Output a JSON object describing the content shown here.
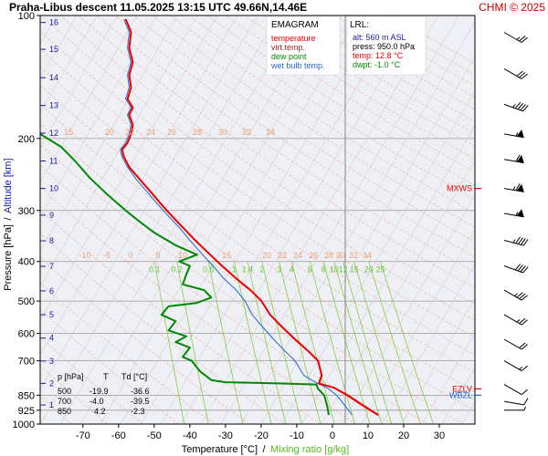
{
  "title": "Praha-Libus   descent   11.05.2025 13:15 UTC  49.66N,14.46E",
  "copyright": "CHMI © 2025",
  "legend": {
    "heading": "EMAGRAM",
    "items": [
      {
        "label": "temperature",
        "color": "#ee0000"
      },
      {
        "label": "virt.temp.",
        "color": "#aa2222"
      },
      {
        "label": "dew point",
        "color": "#008800"
      },
      {
        "label": "wet bulb temp.",
        "color": "#2266cc"
      }
    ]
  },
  "lrl": {
    "heading": "LRL:",
    "lines": [
      {
        "text": "alt: 560 m ASL",
        "color": "#1a1aa0"
      },
      {
        "text": "press: 950.0 hPa",
        "color": "#000000"
      },
      {
        "text": "temp: 12.8 °C",
        "color": "#ee0000"
      },
      {
        "text": "dwpt: -1.0 °C",
        "color": "#008800"
      }
    ]
  },
  "table": {
    "header": [
      "p [hPa]",
      "T",
      "Td [°C]"
    ],
    "rows": [
      [
        "500",
        "-19.9",
        "-36.6"
      ],
      [
        "700",
        "-4.0",
        "-39.5"
      ],
      [
        "850",
        "4.2",
        "-2.3"
      ]
    ]
  },
  "markers": [
    {
      "label": "MXWS",
      "p": 265,
      "color": "#ee0000"
    },
    {
      "label": "EZLV",
      "p": 820,
      "color": "#ee0000"
    },
    {
      "label": "WBZL",
      "p": 850,
      "color": "#2266cc"
    }
  ],
  "chart_data": {
    "type": "line",
    "xlabel": "Temperature [°C]",
    "xlabel_sep": "/",
    "xlabel2": "Mixing ratio [g/kg]",
    "ylabel": "Pressure [hPa]",
    "ylabel_sep": "/",
    "ylabel2": "Altitude [km]",
    "xlim": [
      -82,
      40
    ],
    "ylim": [
      1000,
      100
    ],
    "y_scale": "log",
    "x_ticks": [
      -70,
      -60,
      -50,
      -40,
      -30,
      -20,
      -10,
      0,
      10,
      20,
      30
    ],
    "y_ticks": [
      100,
      200,
      300,
      400,
      500,
      600,
      700,
      850,
      925,
      1000
    ],
    "altitude_ticks": [
      {
        "km": "1",
        "p": 898
      },
      {
        "km": "2",
        "p": 795
      },
      {
        "km": "3",
        "p": 701
      },
      {
        "km": "4",
        "p": 616
      },
      {
        "km": "5",
        "p": 540
      },
      {
        "km": "6",
        "p": 472
      },
      {
        "km": "7",
        "p": 411
      },
      {
        "km": "8",
        "p": 356
      },
      {
        "km": "9",
        "p": 308
      },
      {
        "km": "10",
        "p": 265
      },
      {
        "km": "11",
        "p": 227
      },
      {
        "km": "12",
        "p": 194
      },
      {
        "km": "13",
        "p": 166
      },
      {
        "km": "14",
        "p": 142
      },
      {
        "km": "15",
        "p": 121
      },
      {
        "km": "16",
        "p": 104
      }
    ],
    "dry_adiabat_labels": [
      "15",
      "20",
      "22",
      "24",
      "26",
      "28",
      "30",
      "32",
      "34"
    ],
    "dry_adiabat_labels_upper": [
      "15",
      "20",
      "22",
      "24",
      "26",
      "28",
      "30",
      "32",
      "34"
    ],
    "dry_adiabat_labels_400": [
      "-10",
      "-5",
      "0",
      "5",
      "10",
      "15",
      "20",
      "22",
      "24",
      "26",
      "28",
      "30",
      "32",
      "34"
    ],
    "mixing_ratio_labels": [
      "0.1",
      "0.2",
      "0.5",
      "1",
      "1.4",
      "2",
      "3",
      "4",
      "6",
      "8",
      "10",
      "12",
      "15",
      "20",
      "25"
    ],
    "series": [
      {
        "name": "temperature",
        "color": "#ee0000",
        "points": [
          [
            12.8,
            950
          ],
          [
            8.5,
            900
          ],
          [
            4.2,
            850
          ],
          [
            0.5,
            815
          ],
          [
            -3.8,
            795
          ],
          [
            -3.0,
            760
          ],
          [
            -4.0,
            700
          ],
          [
            -7.0,
            660
          ],
          [
            -10.5,
            620
          ],
          [
            -14.0,
            580
          ],
          [
            -17.5,
            540
          ],
          [
            -19.9,
            500
          ],
          [
            -23.0,
            470
          ],
          [
            -27.0,
            440
          ],
          [
            -31.0,
            410
          ],
          [
            -35.0,
            380
          ],
          [
            -38.5,
            355
          ],
          [
            -42.0,
            330
          ],
          [
            -45.0,
            310
          ],
          [
            -48.0,
            290
          ],
          [
            -51.0,
            270
          ],
          [
            -54.0,
            252
          ],
          [
            -57.0,
            235
          ],
          [
            -58.5,
            222
          ],
          [
            -59.0,
            213
          ],
          [
            -57.5,
            205
          ],
          [
            -56.5,
            195
          ],
          [
            -56.0,
            185
          ],
          [
            -57.0,
            175
          ],
          [
            -56.0,
            168
          ],
          [
            -57.5,
            160
          ],
          [
            -56.5,
            150
          ],
          [
            -57.0,
            140
          ],
          [
            -56.0,
            130
          ],
          [
            -57.0,
            120
          ],
          [
            -56.5,
            110
          ],
          [
            -58.0,
            102
          ]
        ]
      },
      {
        "name": "virt.temp.",
        "color": "#aa2222",
        "points": [
          [
            13.0,
            950
          ],
          [
            8.8,
            900
          ],
          [
            4.5,
            850
          ],
          [
            0.6,
            815
          ],
          [
            -3.7,
            795
          ],
          [
            -2.9,
            760
          ],
          [
            -4.0,
            700
          ],
          [
            -7.0,
            660
          ],
          [
            -10.5,
            620
          ],
          [
            -14.0,
            580
          ],
          [
            -17.5,
            540
          ],
          [
            -19.9,
            500
          ],
          [
            -23.0,
            470
          ],
          [
            -27.0,
            440
          ],
          [
            -31.0,
            410
          ],
          [
            -35.0,
            380
          ],
          [
            -38.5,
            355
          ],
          [
            -42.0,
            330
          ],
          [
            -45.0,
            310
          ],
          [
            -48.0,
            290
          ],
          [
            -51.0,
            270
          ],
          [
            -54.0,
            252
          ],
          [
            -57.0,
            235
          ],
          [
            -58.5,
            222
          ],
          [
            -59.0,
            213
          ],
          [
            -57.5,
            205
          ],
          [
            -56.5,
            195
          ],
          [
            -56.0,
            185
          ],
          [
            -57.0,
            175
          ],
          [
            -56.0,
            168
          ],
          [
            -57.5,
            160
          ],
          [
            -56.5,
            150
          ],
          [
            -57.0,
            140
          ],
          [
            -56.0,
            130
          ],
          [
            -57.0,
            120
          ],
          [
            -56.5,
            110
          ],
          [
            -58.0,
            102
          ]
        ]
      },
      {
        "name": "dew point",
        "color": "#008800",
        "points": [
          [
            -1.0,
            950
          ],
          [
            -1.5,
            900
          ],
          [
            -2.3,
            850
          ],
          [
            -4.0,
            820
          ],
          [
            -4.5,
            800
          ],
          [
            -15.0,
            795
          ],
          [
            -30.0,
            790
          ],
          [
            -34.0,
            780
          ],
          [
            -37.0,
            745
          ],
          [
            -39.5,
            700
          ],
          [
            -42.0,
            685
          ],
          [
            -40.0,
            650
          ],
          [
            -44.0,
            630
          ],
          [
            -41.0,
            610
          ],
          [
            -46.0,
            590
          ],
          [
            -44.0,
            560
          ],
          [
            -48.0,
            540
          ],
          [
            -46.0,
            515
          ],
          [
            -38.0,
            505
          ],
          [
            -34.0,
            490
          ],
          [
            -36.0,
            470
          ],
          [
            -42.0,
            455
          ],
          [
            -41.0,
            430
          ],
          [
            -40.0,
            410
          ],
          [
            -43.0,
            400
          ],
          [
            -38.0,
            385
          ],
          [
            -44.0,
            365
          ],
          [
            -50.0,
            340
          ],
          [
            -54.0,
            320
          ],
          [
            -58.0,
            300
          ],
          [
            -63.0,
            275
          ],
          [
            -68.0,
            250
          ],
          [
            -72.0,
            228
          ],
          [
            -76.0,
            210
          ],
          [
            -82.0,
            195
          ]
        ]
      },
      {
        "name": "wet bulb temp.",
        "color": "#2266cc",
        "points": [
          [
            5.5,
            950
          ],
          [
            3.5,
            900
          ],
          [
            1.2,
            850
          ],
          [
            -1.5,
            815
          ],
          [
            -4.2,
            795
          ],
          [
            -8.0,
            760
          ],
          [
            -10.5,
            700
          ],
          [
            -13.5,
            660
          ],
          [
            -16.5,
            620
          ],
          [
            -19.5,
            580
          ],
          [
            -22.5,
            540
          ],
          [
            -24.5,
            500
          ],
          [
            -27.0,
            470
          ],
          [
            -30.5,
            440
          ],
          [
            -33.5,
            410
          ],
          [
            -37.0,
            380
          ],
          [
            -40.0,
            355
          ],
          [
            -43.0,
            330
          ],
          [
            -46.0,
            310
          ],
          [
            -49.0,
            290
          ],
          [
            -52.0,
            270
          ],
          [
            -55.0,
            252
          ],
          [
            -57.5,
            235
          ],
          [
            -59.0,
            222
          ],
          [
            -59.5,
            213
          ],
          [
            -58.0,
            205
          ],
          [
            -57.0,
            195
          ],
          [
            -56.5,
            185
          ],
          [
            -57.5,
            175
          ],
          [
            -56.5,
            168
          ],
          [
            -58.0,
            160
          ],
          [
            -57.0,
            150
          ],
          [
            -57.5,
            140
          ],
          [
            -56.5,
            130
          ],
          [
            -57.5,
            120
          ],
          [
            -57.0,
            110
          ],
          [
            -58.5,
            102
          ]
        ]
      }
    ],
    "wind_barbs": [
      {
        "p": 110,
        "dir": 300,
        "kt": 25
      },
      {
        "p": 135,
        "dir": 300,
        "kt": 30
      },
      {
        "p": 165,
        "dir": 290,
        "kt": 45
      },
      {
        "p": 195,
        "dir": 280,
        "kt": 55
      },
      {
        "p": 225,
        "dir": 280,
        "kt": 60
      },
      {
        "p": 265,
        "dir": 280,
        "kt": 65
      },
      {
        "p": 305,
        "dir": 280,
        "kt": 55
      },
      {
        "p": 355,
        "dir": 285,
        "kt": 45
      },
      {
        "p": 410,
        "dir": 290,
        "kt": 40
      },
      {
        "p": 470,
        "dir": 300,
        "kt": 35
      },
      {
        "p": 540,
        "dir": 300,
        "kt": 25
      },
      {
        "p": 620,
        "dir": 300,
        "kt": 20
      },
      {
        "p": 700,
        "dir": 300,
        "kt": 15
      },
      {
        "p": 800,
        "dir": 300,
        "kt": 12
      },
      {
        "p": 880,
        "dir": 280,
        "kt": 10
      },
      {
        "p": 925,
        "dir": 270,
        "kt": 8
      }
    ]
  }
}
